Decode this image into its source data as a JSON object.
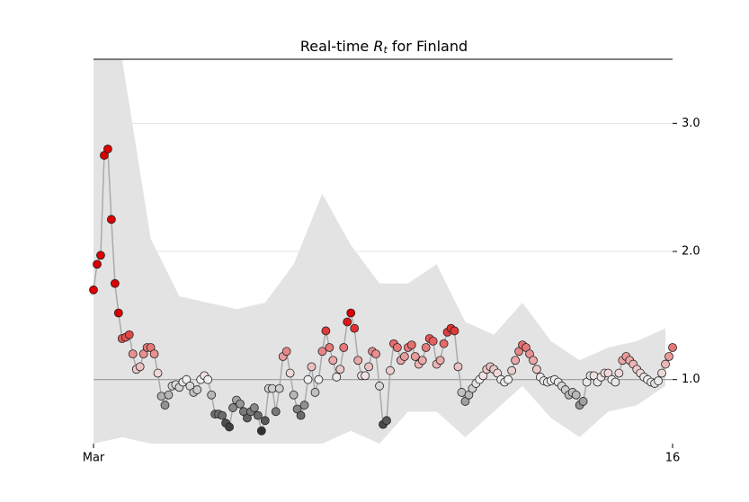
{
  "chart_data": {
    "type": "scatter-line",
    "title": {
      "before": "Real-time ",
      "symbol": "R",
      "subscript": "t",
      "after": " for Finland"
    },
    "categories": [
      "Mar",
      null,
      null,
      null,
      null,
      null,
      null,
      null,
      null,
      null,
      null,
      null,
      null,
      null,
      null,
      null,
      null,
      null,
      null,
      null,
      null,
      null,
      null,
      null,
      null,
      null,
      null,
      null,
      null,
      null,
      null,
      null,
      null,
      null,
      null,
      null,
      null,
      null,
      null,
      null,
      null,
      null,
      null,
      null,
      null,
      null,
      null,
      null,
      null,
      null,
      null,
      null,
      null,
      null,
      null,
      null,
      null,
      null,
      null,
      null,
      null,
      null,
      null,
      null,
      null,
      null,
      null,
      null,
      null,
      null,
      null,
      null,
      null,
      null,
      null,
      null,
      null,
      null,
      null,
      null,
      null,
      null,
      null,
      null,
      null,
      null,
      null,
      null,
      null,
      null,
      null,
      null,
      null,
      null,
      null,
      null,
      null,
      null,
      null,
      null,
      null,
      null,
      null,
      null,
      null,
      null,
      null,
      null,
      null,
      null,
      null,
      null,
      null,
      null,
      null,
      null,
      null,
      null,
      null,
      null,
      null,
      null,
      null,
      null,
      null,
      null,
      null,
      null,
      null,
      null,
      null,
      null,
      null,
      null,
      null,
      null,
      null,
      null,
      null,
      null,
      null,
      null,
      null,
      null,
      null,
      null,
      null,
      null,
      null,
      null,
      null,
      null,
      null,
      null,
      null,
      null,
      null,
      null,
      null,
      null,
      null,
      null,
      "16"
    ],
    "values": [
      1.7,
      1.9,
      1.97,
      2.75,
      2.8,
      2.25,
      1.75,
      1.52,
      1.32,
      1.33,
      1.35,
      1.2,
      1.08,
      1.1,
      1.2,
      1.25,
      1.25,
      1.2,
      1.05,
      0.87,
      0.8,
      0.88,
      0.95,
      0.96,
      0.94,
      0.98,
      1.0,
      0.95,
      0.9,
      0.92,
      1.0,
      1.03,
      1.0,
      0.88,
      0.73,
      0.73,
      0.72,
      0.66,
      0.63,
      0.78,
      0.84,
      0.81,
      0.75,
      0.7,
      0.75,
      0.78,
      0.72,
      0.6,
      0.68,
      0.93,
      0.93,
      0.75,
      0.93,
      1.18,
      1.22,
      1.05,
      0.88,
      0.77,
      0.72,
      0.8,
      1.0,
      1.1,
      0.9,
      1.0,
      1.22,
      1.38,
      1.25,
      1.15,
      1.02,
      1.08,
      1.25,
      1.45,
      1.52,
      1.4,
      1.15,
      1.03,
      1.03,
      1.1,
      1.22,
      1.2,
      0.95,
      0.65,
      0.68,
      1.07,
      1.28,
      1.25,
      1.15,
      1.18,
      1.25,
      1.27,
      1.18,
      1.12,
      1.15,
      1.25,
      1.32,
      1.3,
      1.12,
      1.15,
      1.28,
      1.37,
      1.4,
      1.38,
      1.1,
      0.9,
      0.83,
      0.88,
      0.93,
      0.97,
      1.0,
      1.03,
      1.08,
      1.1,
      1.08,
      1.05,
      1.0,
      0.98,
      1.0,
      1.07,
      1.15,
      1.22,
      1.27,
      1.25,
      1.2,
      1.15,
      1.08,
      1.02,
      0.99,
      0.98,
      0.99,
      1.0,
      0.98,
      0.95,
      0.92,
      0.88,
      0.9,
      0.88,
      0.8,
      0.83,
      0.98,
      1.03,
      1.03,
      0.98,
      1.02,
      1.05,
      1.05,
      1.0,
      0.98,
      1.05,
      1.15,
      1.18,
      1.15,
      1.12,
      1.08,
      1.05,
      1.02,
      1.0,
      0.98,
      0.97,
      0.99,
      1.05,
      1.12,
      1.18,
      1.25
    ],
    "band": {
      "index": [
        0,
        8,
        16,
        24,
        32,
        40,
        48,
        56,
        64,
        72,
        80,
        88,
        96,
        104,
        112,
        120,
        128,
        136,
        144,
        152,
        160
      ],
      "lower": [
        0.5,
        0.55,
        0.5,
        0.5,
        0.5,
        0.5,
        0.5,
        0.5,
        0.5,
        0.6,
        0.5,
        0.75,
        0.75,
        0.55,
        0.75,
        0.95,
        0.7,
        0.55,
        0.75,
        0.8,
        0.95
      ],
      "upper": [
        3.5,
        3.5,
        2.1,
        1.65,
        1.6,
        1.55,
        1.6,
        1.9,
        2.45,
        2.05,
        1.75,
        1.75,
        1.9,
        1.45,
        1.35,
        1.6,
        1.3,
        1.15,
        1.25,
        1.3,
        1.4
      ]
    },
    "ylim": [
      0.5,
      3.5
    ],
    "yticks": [
      {
        "value": 1,
        "label": "1.0"
      },
      {
        "value": 2,
        "label": "2.0"
      },
      {
        "value": 3,
        "label": "3.0"
      }
    ],
    "reference": 1,
    "grid": true
  }
}
